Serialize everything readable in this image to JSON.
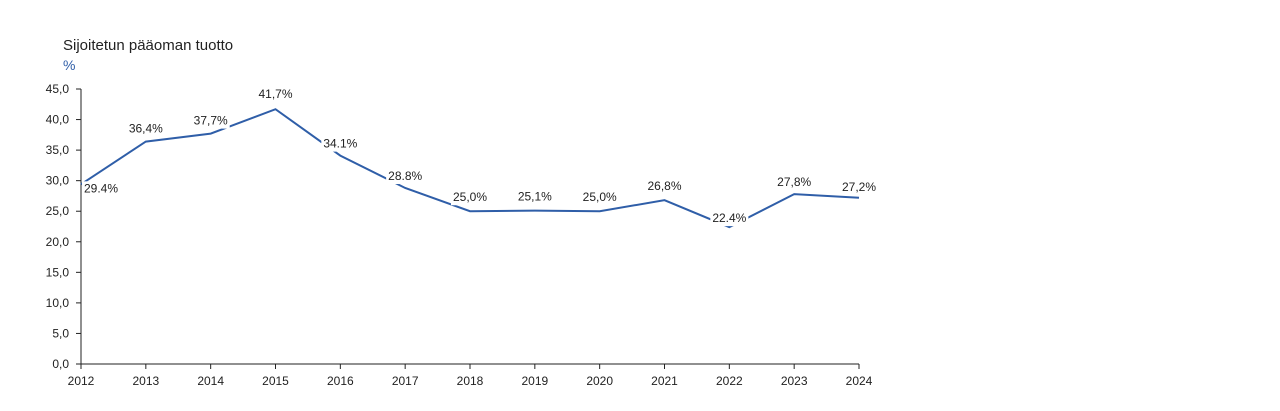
{
  "colors": {
    "line": "#2f5ea8",
    "axis": "#222222",
    "unit": "#2f5ea8"
  },
  "chart_data": {
    "type": "line",
    "title": "Sijoitetun pääoman tuotto",
    "ylabel": "%",
    "xlabel": "",
    "ylim": [
      0,
      45
    ],
    "ytick_values": [
      0,
      5,
      10,
      15,
      20,
      25,
      30,
      35,
      40,
      45
    ],
    "ytick_labels": [
      "0,0",
      "5,0",
      "10,0",
      "15,0",
      "20,0",
      "25,0",
      "30,0",
      "35,0",
      "40,0",
      "45,0"
    ],
    "grid": false,
    "x": [
      "2012",
      "2013",
      "2014",
      "2015",
      "2016",
      "2017",
      "2018",
      "2019",
      "2020",
      "2021",
      "2022",
      "2023",
      "2024"
    ],
    "series": [
      {
        "values": [
          29.4,
          36.4,
          37.7,
          41.7,
          34.1,
          28.8,
          25.0,
          25.1,
          25.0,
          26.8,
          22.4,
          27.8,
          27.2
        ],
        "labels": [
          "29.4%",
          "36,4%",
          "37,7%",
          "41,7%",
          "34.1%",
          "28.8%",
          "25,0%",
          "25,1%",
          "25,0%",
          "26,8%",
          "22.4%",
          "27,8%",
          "27,2%"
        ]
      }
    ]
  }
}
